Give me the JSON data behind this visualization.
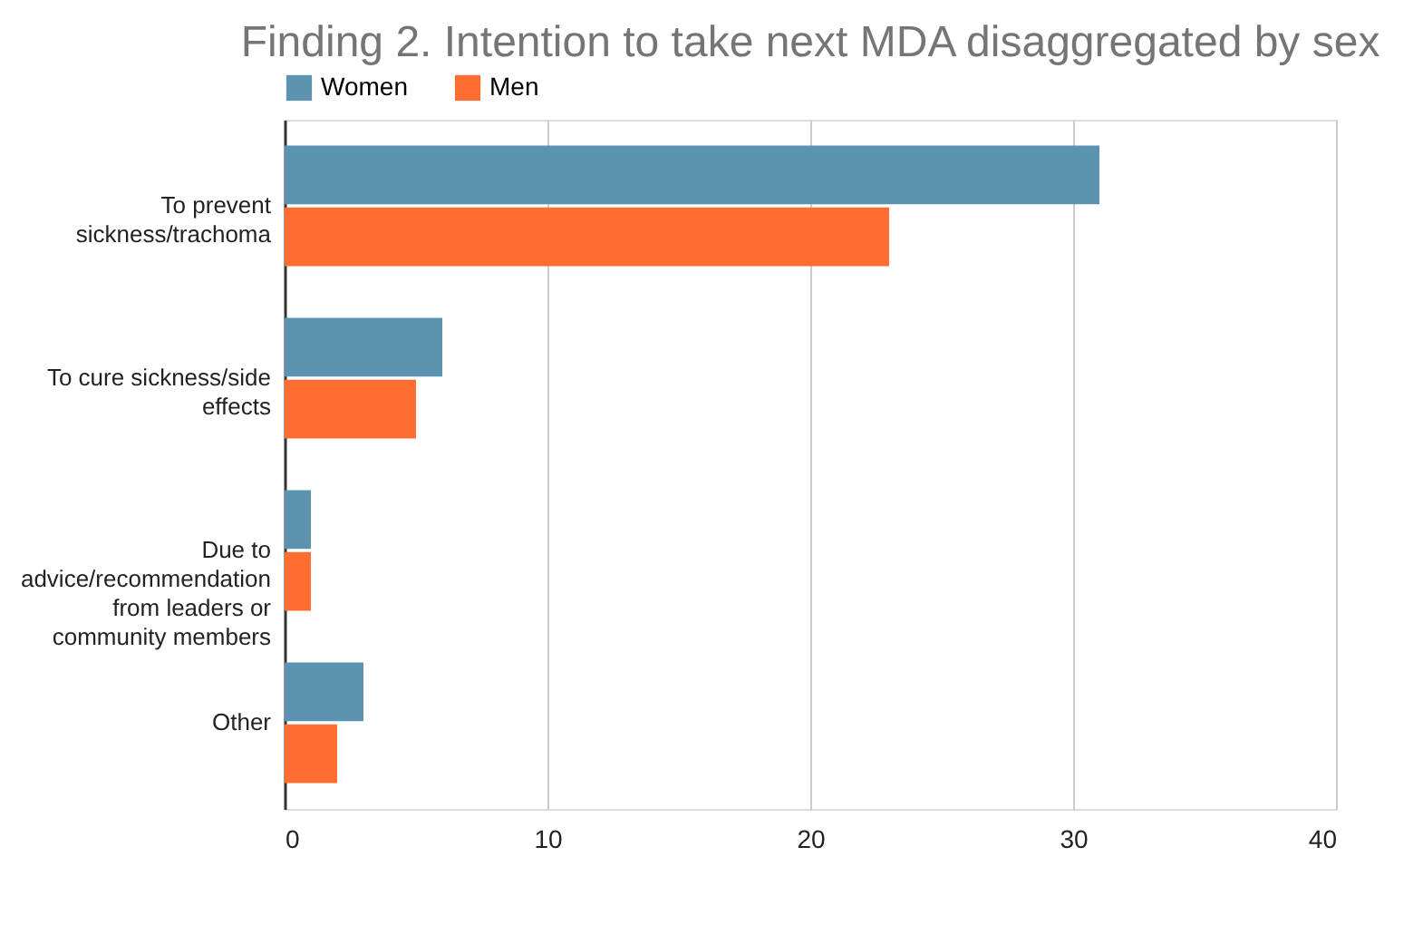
{
  "chart_data": {
    "type": "bar",
    "orientation": "horizontal",
    "title": "Finding 2. Intention to take next MDA disaggregated by sex",
    "categories": [
      "To prevent sickness/trachoma",
      "To cure sickness/side effects",
      "Due to advice/recommendation from leaders or community members",
      "Other"
    ],
    "series": [
      {
        "name": "Women",
        "color": "#5b93b0",
        "values": [
          31,
          6,
          1,
          3
        ]
      },
      {
        "name": "Men",
        "color": "#ff6d31",
        "values": [
          23,
          5,
          1,
          2
        ]
      }
    ],
    "xlim": [
      0,
      40
    ],
    "xticks": [
      0,
      10,
      20,
      30,
      40
    ],
    "grid": "x",
    "legend": "top"
  }
}
